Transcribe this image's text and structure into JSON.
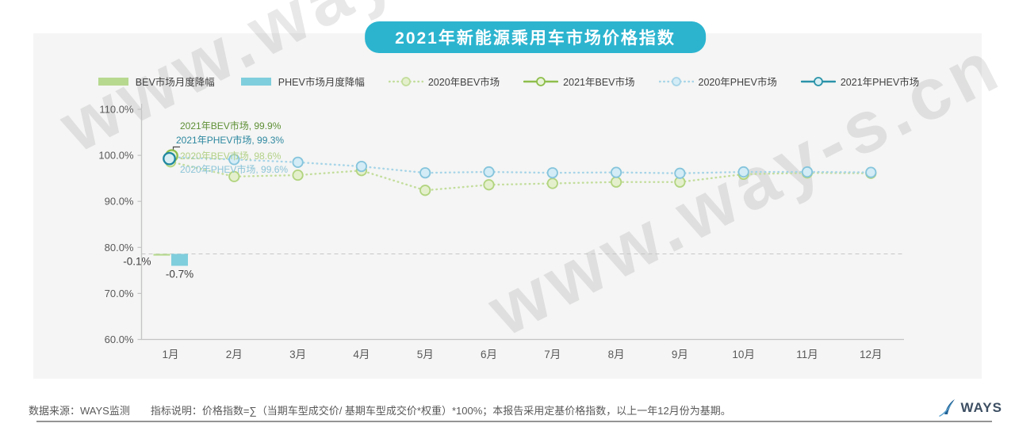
{
  "title": "2021年新能源乘用车市场价格指数",
  "watermark": {
    "text": "www.way-s.cn"
  },
  "legend": [
    {
      "label": "BEV市场月度降幅",
      "type": "bar",
      "color": "#b7d98f",
      "marker_fill": ""
    },
    {
      "label": "PHEV市场月度降幅",
      "type": "bar",
      "color": "#7fcedd",
      "marker_fill": ""
    },
    {
      "label": "2020年BEV市场",
      "type": "line-dotted",
      "color": "#c3dd9b",
      "marker_fill": "#e4f0cd"
    },
    {
      "label": "2021年BEV市场",
      "type": "line-solid",
      "color": "#8ebe4b",
      "marker_fill": "#e8f2d8"
    },
    {
      "label": "2020年PHEV市场",
      "type": "line-dotted",
      "color": "#a6d4e8",
      "marker_fill": "#d3ecf6"
    },
    {
      "label": "2021年PHEV市场",
      "type": "line-solid",
      "color": "#2a93a9",
      "marker_fill": "#d8eef3"
    }
  ],
  "chart_data": {
    "type": "line+bar",
    "title": "2021年新能源乘用车市场价格指数",
    "categories": [
      "1月",
      "2月",
      "3月",
      "4月",
      "5月",
      "6月",
      "7月",
      "8月",
      "9月",
      "10月",
      "11月",
      "12月"
    ],
    "y_axis": {
      "min": 60,
      "max": 110,
      "ticks": [
        "110.0%",
        "100.0%",
        "90.0%",
        "80.0%",
        "70.0%",
        "60.0%"
      ]
    },
    "series": [
      {
        "id": "bev-2020",
        "name": "2020年BEV市场",
        "style": "dotted",
        "color": "#c3dd9b",
        "marker_fill": "#e4f0cd",
        "marker_stroke": "#b2d47f",
        "values": [
          98.6,
          95.4,
          95.7,
          96.7,
          92.4,
          93.6,
          93.9,
          94.2,
          94.2,
          95.9,
          96.2,
          96.1
        ]
      },
      {
        "id": "phev-2020",
        "name": "2020年PHEV市场",
        "style": "dotted",
        "color": "#a6d4e8",
        "marker_fill": "#d3ecf6",
        "marker_stroke": "#85c4dc",
        "values": [
          99.6,
          99.1,
          98.5,
          97.6,
          96.2,
          96.4,
          96.2,
          96.3,
          96.1,
          96.4,
          96.4,
          96.3
        ]
      },
      {
        "id": "bev-2021",
        "name": "2021年BEV市场",
        "style": "solid",
        "color": "#8ebe4b",
        "marker_fill": "#e8f2d8",
        "marker_stroke": "#8ebe4b",
        "values": [
          99.9
        ]
      },
      {
        "id": "phev-2021",
        "name": "2021年PHEV市场",
        "style": "solid",
        "color": "#2a93a9",
        "marker_fill": "#d8eef3",
        "marker_stroke": "#1f87a0",
        "values": [
          99.3
        ]
      }
    ],
    "bars": [
      {
        "id": "bev-decline",
        "name": "BEV市场月度降幅",
        "color": "#b7d98f",
        "month_index": 0,
        "value": -0.1,
        "label": "-0.1%"
      },
      {
        "id": "phev-decline",
        "name": "PHEV市场月度降幅",
        "color": "#7fcedd",
        "month_index": 0,
        "value": -0.7,
        "label": "-0.7%"
      }
    ],
    "annotations": [
      {
        "text": "2021年BEV市场, 99.9%",
        "color": "#5e8f35"
      },
      {
        "text": "2021年PHEV市场, 99.3%",
        "color": "#2d87a0"
      },
      {
        "text": "2020年BEV市场, 98.6%",
        "color": "#b3d187"
      },
      {
        "text": "2020年PHEV市场, 99.6%",
        "color": "#8cc4d8"
      }
    ]
  },
  "footer": {
    "source": "数据来源：WAYS监测",
    "note": "指标说明：价格指数=∑（当期车型成交价/ 基期车型成交价*权重）*100%；本报告采用定基价格指数，以上一年12月份为基期。",
    "logo_text": "WAYS"
  }
}
